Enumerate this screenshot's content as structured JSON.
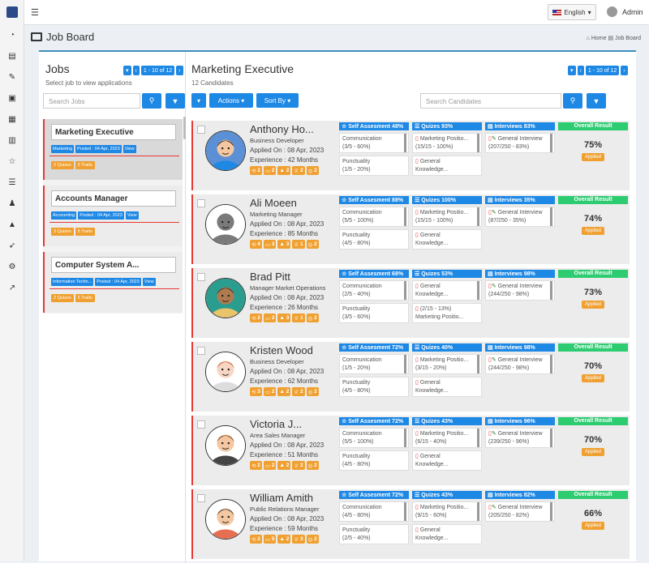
{
  "header": {
    "language": "English",
    "user": "Admin"
  },
  "page": {
    "title": "Job Board",
    "breadcrumb_home": "Home",
    "breadcrumb_current": "Job Board"
  },
  "jobs_panel": {
    "title": "Jobs",
    "subtitle": "Select job to view applications",
    "pager": "1 - 10 of 12",
    "search_placeholder": "Search Jobs",
    "jobs": [
      {
        "title": "Marketing Executive",
        "category": "Marketing",
        "posted": "Posted : 04 Apr, 2023",
        "view": "View",
        "quizzes": "2 Quizes",
        "traits": "5 Traits"
      },
      {
        "title": "Accounts Manager",
        "category": "Accounting",
        "posted": "Posted : 04 Apr, 2023",
        "view": "View",
        "quizzes": "3 Quizes",
        "traits": "5 Traits"
      },
      {
        "title": "Computer System A...",
        "category": "Information Techn...",
        "posted": "Posted : 04 Apr, 2023",
        "view": "View",
        "quizzes": "2 Quizes",
        "traits": "5 Traits"
      }
    ]
  },
  "candidates_panel": {
    "title": "Marketing Executive",
    "subtitle": "12 Candidates",
    "pager": "1 - 10 of 12",
    "actions_label": "Actions",
    "sort_label": "Sort By",
    "search_placeholder": "Search Candidates",
    "overall_label": "Overall Result",
    "candidates": [
      {
        "name": "Anthony Ho...",
        "role": "Business Developer",
        "applied": "Applied On : 08 Apr, 2023",
        "exp": "Experience : 42 Months",
        "b": [
          "2",
          "2",
          "2",
          "2",
          "2"
        ],
        "self": "Self Assesment 48%",
        "s1": [
          "Communication",
          "(3/5 - 60%)"
        ],
        "s2": [
          "Punctuality",
          "(1/5 - 20%)"
        ],
        "quiz": "Quizes 93%",
        "q1": [
          "Marketing Positio...",
          "(15/15 - 100%)"
        ],
        "q2": [
          "General",
          "Knowledge..."
        ],
        "intv": "Interviews 83%",
        "i1": [
          "General Interview",
          "(207/250 - 83%)"
        ],
        "result": "75%",
        "status": "Applied"
      },
      {
        "name": "Ali Moeen",
        "role": "Marketing Manager",
        "applied": "Applied On : 08 Apr, 2023",
        "exp": "Experience : 85 Months",
        "b": [
          "4",
          "3",
          "3",
          "1",
          "2"
        ],
        "self": "Self Assesment 88%",
        "s1": [
          "Communication",
          "(5/5 - 100%)"
        ],
        "s2": [
          "Punctuality",
          "(4/5 - 80%)"
        ],
        "quiz": "Quizes 100%",
        "q1": [
          "Marketing Positio...",
          "(15/15 - 100%)"
        ],
        "q2": [
          "General",
          "Knowledge..."
        ],
        "intv": "Interviews 35%",
        "i1": [
          "General Interview",
          "(87/250 - 35%)"
        ],
        "result": "74%",
        "status": "Applied"
      },
      {
        "name": "Brad Pitt",
        "role": "Manager Market Operations",
        "applied": "Applied On : 08 Apr, 2023",
        "exp": "Experience : 26 Months",
        "b": [
          "2",
          "2",
          "3",
          "1",
          "2"
        ],
        "self": "Self Assesment 68%",
        "s1": [
          "Communication",
          "(2/5 - 40%)"
        ],
        "s2": [
          "Punctuality",
          "(3/5 - 60%)"
        ],
        "quiz": "Quizes 53%",
        "q1": [
          "General",
          "Knowledge..."
        ],
        "q2": [
          "(2/15 - 13%)",
          "Marketing Positio..."
        ],
        "intv": "Interviews 98%",
        "i1": [
          "General Interview",
          "(244/250 - 98%)"
        ],
        "result": "73%",
        "status": "Applied"
      },
      {
        "name": "Kristen Wood",
        "role": "Business Developer",
        "applied": "Applied On : 08 Apr, 2023",
        "exp": "Experience : 62 Months",
        "b": [
          "3",
          "2",
          "2",
          "2",
          "2"
        ],
        "self": "Self Assesment 72%",
        "s1": [
          "Communication",
          "(1/5 - 20%)"
        ],
        "s2": [
          "Punctuality",
          "(4/5 - 80%)"
        ],
        "quiz": "Quizes 40%",
        "q1": [
          "Marketing Positio...",
          "(3/15 - 20%)"
        ],
        "q2": [
          "General",
          "Knowledge..."
        ],
        "intv": "Interviews 98%",
        "i1": [
          "General Interview",
          "(244/250 - 98%)"
        ],
        "result": "70%",
        "status": "Applied"
      },
      {
        "name": "Victoria J...",
        "role": "Area Sales Manager",
        "applied": "Applied On : 08 Apr, 2023",
        "exp": "Experience : 51 Months",
        "b": [
          "2",
          "2",
          "2",
          "2",
          "2"
        ],
        "self": "Self Assesment 72%",
        "s1": [
          "Communication",
          "(5/5 - 100%)"
        ],
        "s2": [
          "Punctuality",
          "(4/5 - 80%)"
        ],
        "quiz": "Quizes 43%",
        "q1": [
          "Marketing Positio...",
          "(6/15 - 40%)"
        ],
        "q2": [
          "General",
          "Knowledge..."
        ],
        "intv": "Interviews 96%",
        "i1": [
          "General Interview",
          "(239/250 - 96%)"
        ],
        "result": "70%",
        "status": "Applied"
      },
      {
        "name": "William Amith",
        "role": "Public Relations Manager",
        "applied": "Applied On : 08 Apr, 2023",
        "exp": "Experience : 59 Months",
        "b": [
          "2",
          "5",
          "2",
          "3",
          "2"
        ],
        "self": "Self Assesment 72%",
        "s1": [
          "Communication",
          "(4/5 - 80%)"
        ],
        "s2": [
          "Punctuality",
          "(2/5 - 40%)"
        ],
        "quiz": "Quizes 43%",
        "q1": [
          "Marketing Positio...",
          "(9/15 - 60%)"
        ],
        "q2": [
          "General",
          "Knowledge..."
        ],
        "intv": "Interviews 82%",
        "i1": [
          "General Interview",
          "(205/250 - 82%)"
        ],
        "result": "66%",
        "status": "Applied"
      }
    ]
  },
  "colors": {
    "primary": "#1e88e5",
    "accent_red": "#e53935",
    "badge_orange": "#f0a030",
    "result_green": "#2ecc71"
  }
}
